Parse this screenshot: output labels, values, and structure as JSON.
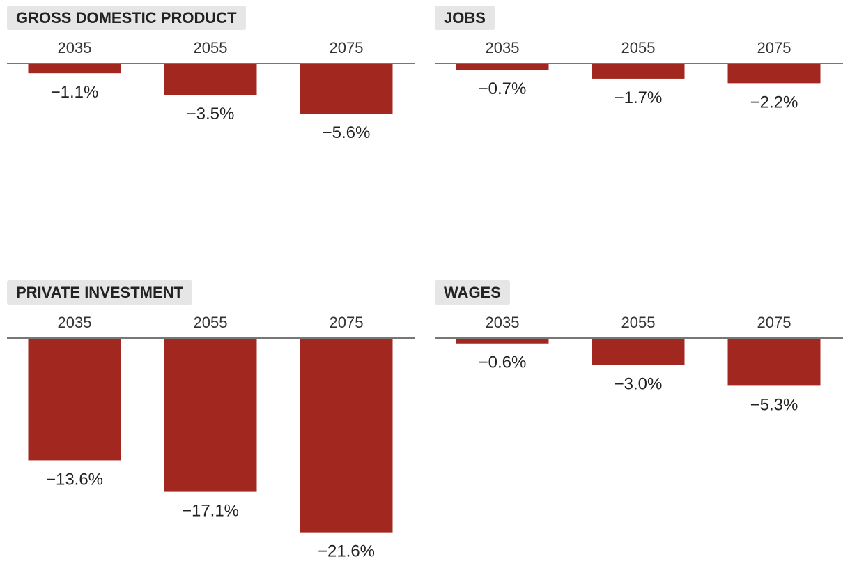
{
  "accent_color": "#a1271f",
  "chart_data": [
    {
      "type": "bar",
      "title": "GROSS DOMESTIC PRODUCT",
      "categories": [
        "2035",
        "2055",
        "2075"
      ],
      "values": [
        -1.1,
        -3.5,
        -5.6
      ],
      "value_labels": [
        "−1.1%",
        "−3.5%",
        "−5.6%"
      ],
      "unit": "%",
      "grid": false,
      "legend": "none"
    },
    {
      "type": "bar",
      "title": "JOBS",
      "categories": [
        "2035",
        "2055",
        "2075"
      ],
      "values": [
        -0.7,
        -1.7,
        -2.2
      ],
      "value_labels": [
        "−0.7%",
        "−1.7%",
        "−2.2%"
      ],
      "unit": "%",
      "grid": false,
      "legend": "none"
    },
    {
      "type": "bar",
      "title": "PRIVATE INVESTMENT",
      "categories": [
        "2035",
        "2055",
        "2075"
      ],
      "values": [
        -13.6,
        -17.1,
        -21.6
      ],
      "value_labels": [
        "−13.6%",
        "−17.1%",
        "−21.6%"
      ],
      "unit": "%",
      "grid": false,
      "legend": "none"
    },
    {
      "type": "bar",
      "title": "WAGES",
      "categories": [
        "2035",
        "2055",
        "2075"
      ],
      "values": [
        -0.6,
        -3.0,
        -5.3
      ],
      "value_labels": [
        "−0.6%",
        "−3.0%",
        "−5.3%"
      ],
      "unit": "%",
      "grid": false,
      "legend": "none"
    }
  ]
}
